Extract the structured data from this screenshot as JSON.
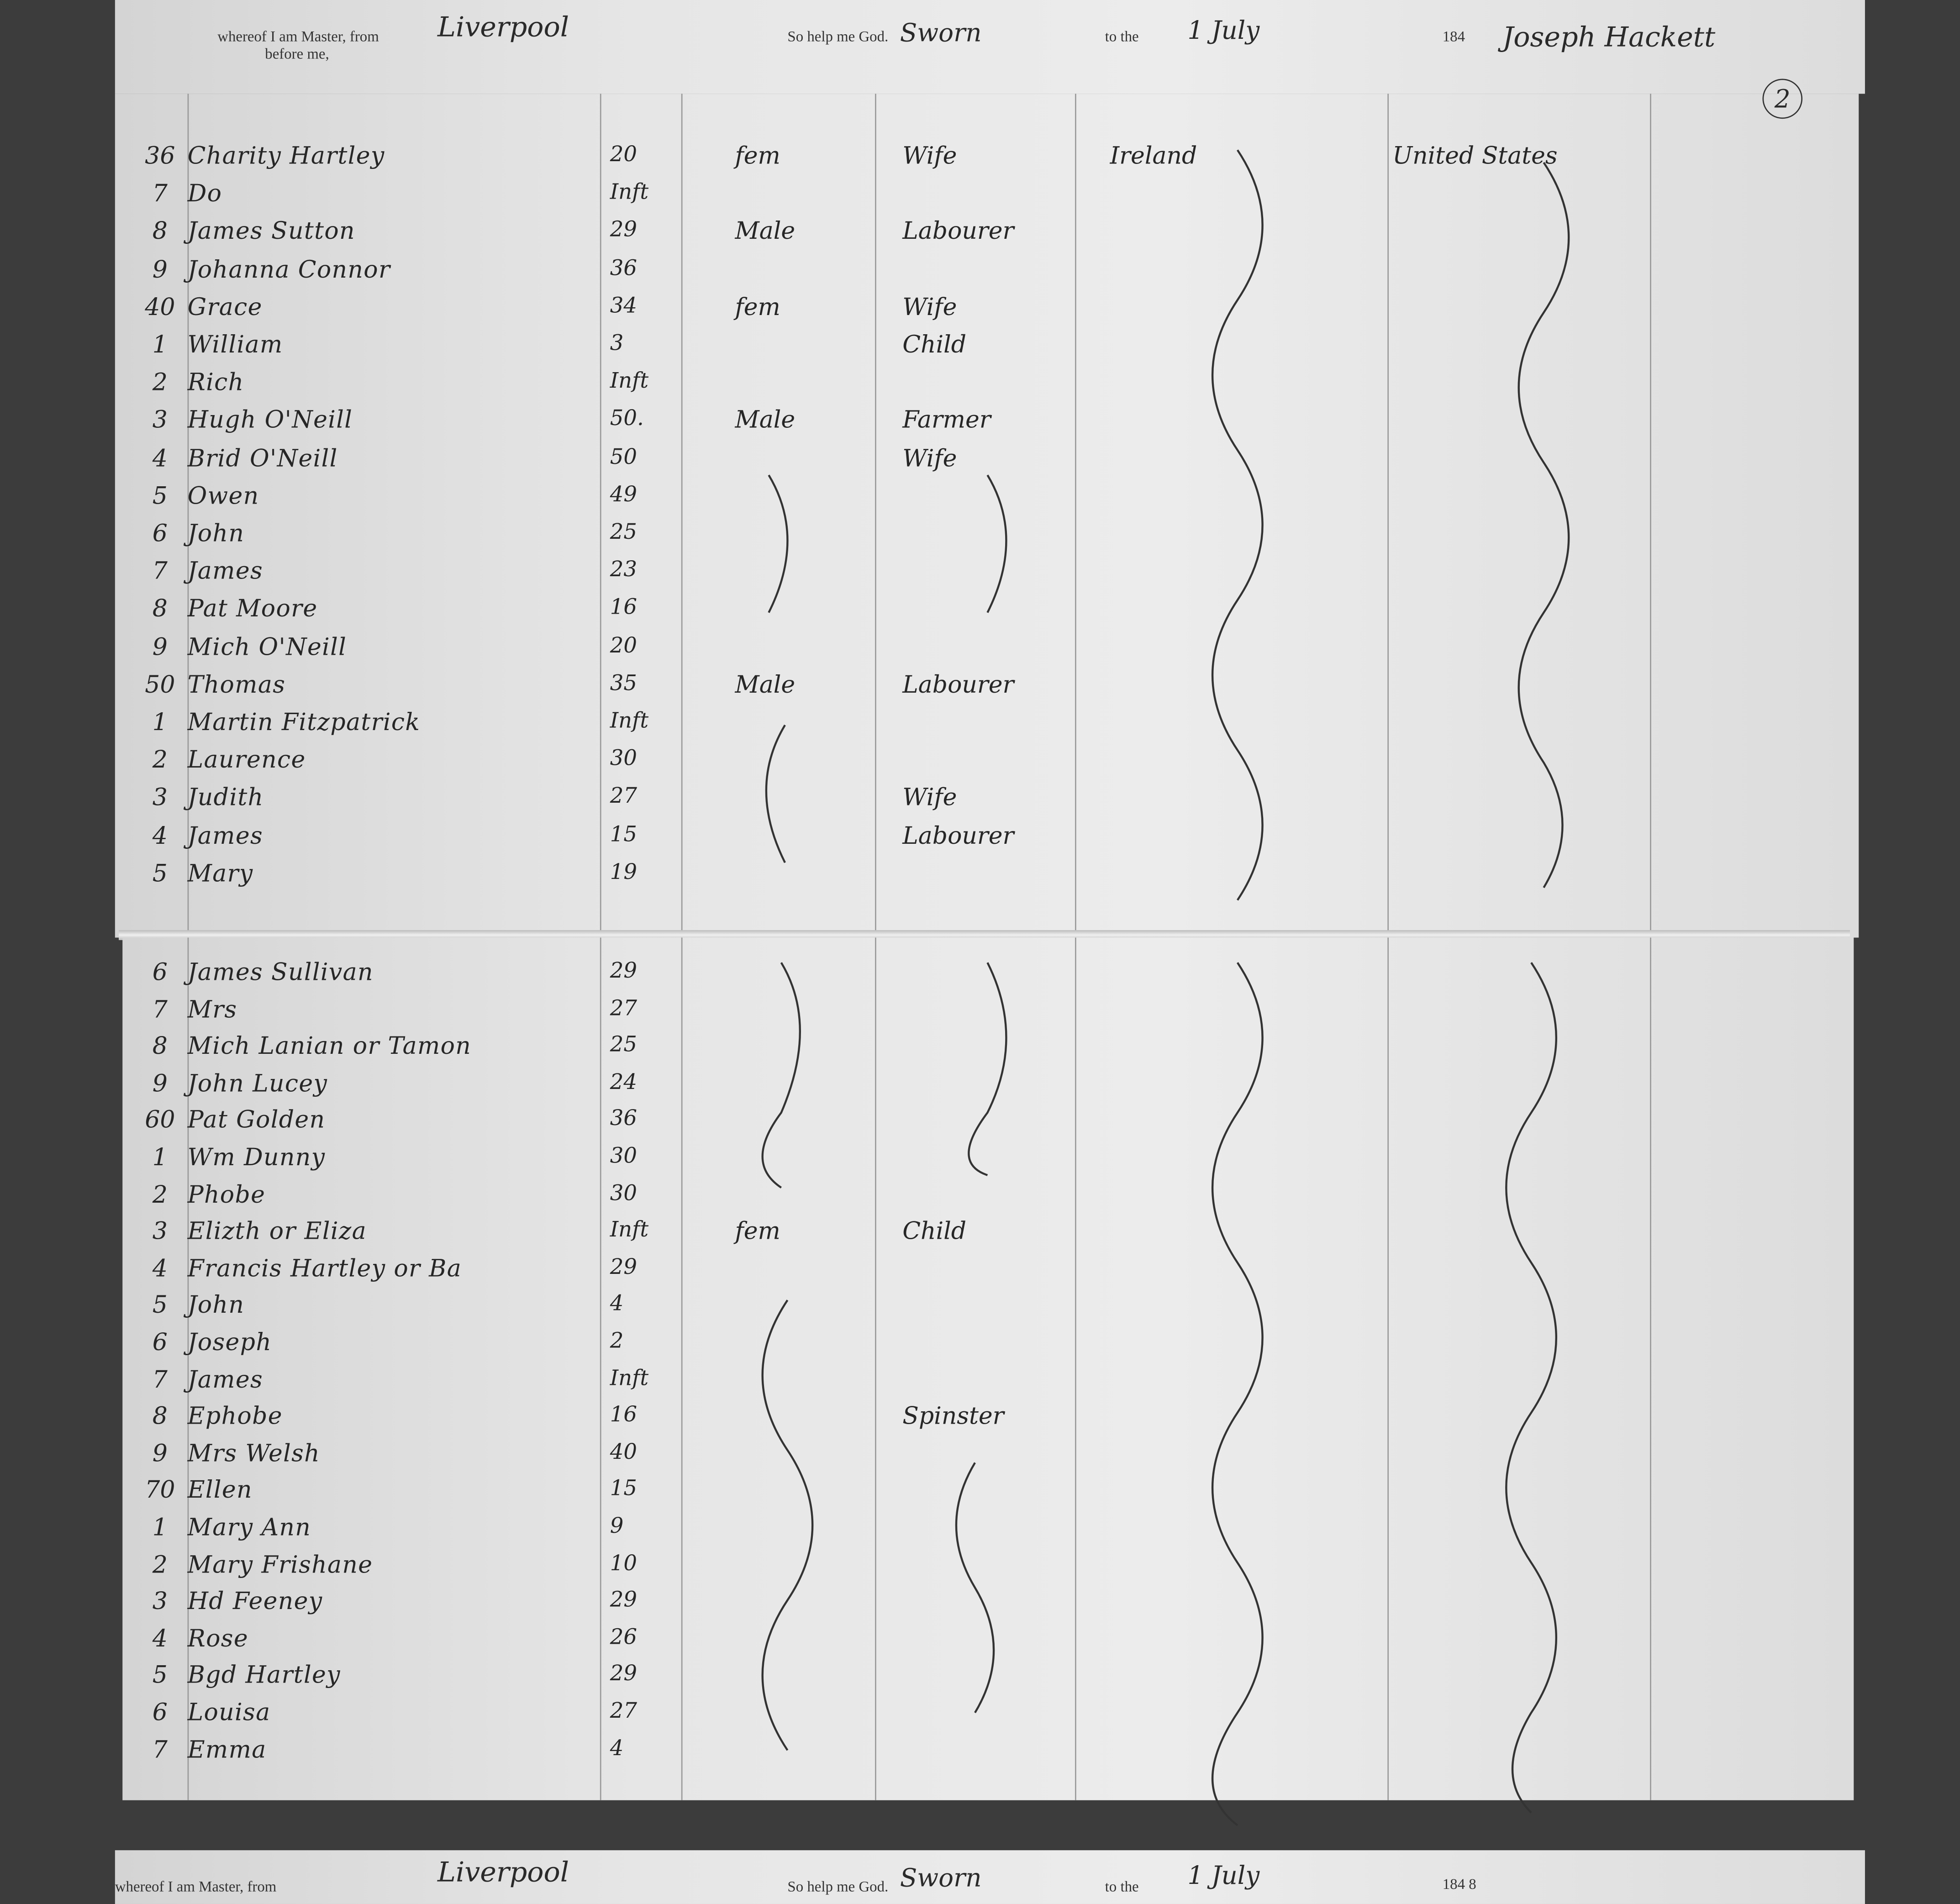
{
  "header_top": {
    "master_text": "whereof I am Master, from",
    "before_text": "before me,",
    "port": "Liverpool",
    "oath_text": "So help me God.",
    "sworn": "Sworn",
    "to_the": "to the",
    "date_hand": "1 July",
    "year": "184",
    "signature": "Joseph Hackett"
  },
  "header_bottom": {
    "master_text": "whereof I am Master, from",
    "port": "Liverpool",
    "oath_text": "So help me God.",
    "sworn": "Sworn",
    "to_the": "to the",
    "date_hand": "1 July",
    "year": "184 8"
  },
  "page_number": "2",
  "top_rows": [
    {
      "num": "36",
      "name": "Charity Hartley",
      "age": "20",
      "sex": "fem",
      "occ": "Wife",
      "country": "Ireland",
      "dest": "United States"
    },
    {
      "num": "7",
      "name": "Do",
      "age": "Inft",
      "sex": "",
      "occ": "",
      "country": "",
      "dest": ""
    },
    {
      "num": "8",
      "name": "James Sutton",
      "age": "29",
      "sex": "Male",
      "occ": "Labourer",
      "country": "",
      "dest": ""
    },
    {
      "num": "9",
      "name": "Johanna Connor",
      "age": "36",
      "sex": "",
      "occ": "",
      "country": "",
      "dest": ""
    },
    {
      "num": "40",
      "name": "Grace",
      "age": "34",
      "sex": "fem",
      "occ": "Wife",
      "country": "",
      "dest": ""
    },
    {
      "num": "1",
      "name": "William",
      "age": "3",
      "sex": "",
      "occ": "Child",
      "country": "",
      "dest": ""
    },
    {
      "num": "2",
      "name": "Rich",
      "age": "Inft",
      "sex": "",
      "occ": "",
      "country": "",
      "dest": ""
    },
    {
      "num": "3",
      "name": "Hugh O'Neill",
      "age": "50.",
      "sex": "Male",
      "occ": "Farmer",
      "country": "",
      "dest": ""
    },
    {
      "num": "4",
      "name": "Brid O'Neill",
      "age": "50",
      "sex": "",
      "occ": "Wife",
      "country": "",
      "dest": ""
    },
    {
      "num": "5",
      "name": "Owen",
      "age": "49",
      "sex": "",
      "occ": "",
      "country": "",
      "dest": ""
    },
    {
      "num": "6",
      "name": "John",
      "age": "25",
      "sex": "",
      "occ": "",
      "country": "",
      "dest": ""
    },
    {
      "num": "7",
      "name": "James",
      "age": "23",
      "sex": "",
      "occ": "",
      "country": "",
      "dest": ""
    },
    {
      "num": "8",
      "name": "Pat Moore",
      "age": "16",
      "sex": "",
      "occ": "",
      "country": "",
      "dest": ""
    },
    {
      "num": "9",
      "name": "Mich O'Neill",
      "age": "20",
      "sex": "",
      "occ": "",
      "country": "",
      "dest": ""
    },
    {
      "num": "50",
      "name": "Thomas",
      "age": "35",
      "sex": "Male",
      "occ": "Labourer",
      "country": "",
      "dest": ""
    },
    {
      "num": "1",
      "name": "Martin Fitzpatrick",
      "age": "Inft",
      "sex": "",
      "occ": "",
      "country": "",
      "dest": ""
    },
    {
      "num": "2",
      "name": "Laurence",
      "age": "30",
      "sex": "",
      "occ": "",
      "country": "",
      "dest": ""
    },
    {
      "num": "3",
      "name": "Judith",
      "age": "27",
      "sex": "",
      "occ": "Wife",
      "country": "",
      "dest": ""
    },
    {
      "num": "4",
      "name": "James",
      "age": "15",
      "sex": "",
      "occ": "Labourer",
      "country": "",
      "dest": ""
    },
    {
      "num": "5",
      "name": "Mary",
      "age": "19",
      "sex": "",
      "occ": "",
      "country": "",
      "dest": ""
    }
  ],
  "bottom_rows": [
    {
      "num": "6",
      "name": "James Sullivan",
      "age": "29",
      "sex": "",
      "occ": "",
      "country": "",
      "dest": ""
    },
    {
      "num": "7",
      "name": "Mrs",
      "age": "27",
      "sex": "",
      "occ": "",
      "country": "",
      "dest": ""
    },
    {
      "num": "8",
      "name": "Mich Lanian or Tamon",
      "age": "25",
      "sex": "",
      "occ": "",
      "country": "",
      "dest": ""
    },
    {
      "num": "9",
      "name": "John Lucey",
      "age": "24",
      "sex": "",
      "occ": "",
      "country": "",
      "dest": ""
    },
    {
      "num": "60",
      "name": "Pat Golden",
      "age": "36",
      "sex": "",
      "occ": "",
      "country": "",
      "dest": ""
    },
    {
      "num": "1",
      "name": "Wm Dunny",
      "age": "30",
      "sex": "",
      "occ": "",
      "country": "",
      "dest": ""
    },
    {
      "num": "2",
      "name": "Phobe",
      "age": "30",
      "sex": "",
      "occ": "",
      "country": "",
      "dest": ""
    },
    {
      "num": "3",
      "name": "Elizth or Eliza",
      "age": "Inft",
      "sex": "fem",
      "occ": "Child",
      "country": "",
      "dest": ""
    },
    {
      "num": "4",
      "name": "Francis Hartley or Ba",
      "age": "29",
      "sex": "",
      "occ": "",
      "country": "",
      "dest": ""
    },
    {
      "num": "5",
      "name": "John",
      "age": "4",
      "sex": "",
      "occ": "",
      "country": "",
      "dest": ""
    },
    {
      "num": "6",
      "name": "Joseph",
      "age": "2",
      "sex": "",
      "occ": "",
      "country": "",
      "dest": ""
    },
    {
      "num": "7",
      "name": "James",
      "age": "Inft",
      "sex": "",
      "occ": "",
      "country": "",
      "dest": ""
    },
    {
      "num": "8",
      "name": "Ephobe",
      "age": "16",
      "sex": "",
      "occ": "Spinster",
      "country": "",
      "dest": ""
    },
    {
      "num": "9",
      "name": "Mrs Welsh",
      "age": "40",
      "sex": "",
      "occ": "",
      "country": "",
      "dest": ""
    },
    {
      "num": "70",
      "name": "Ellen",
      "age": "15",
      "sex": "",
      "occ": "",
      "country": "",
      "dest": ""
    },
    {
      "num": "1",
      "name": "Mary Ann",
      "age": "9",
      "sex": "",
      "occ": "",
      "country": "",
      "dest": ""
    },
    {
      "num": "2",
      "name": "Mary Frishane",
      "age": "10",
      "sex": "",
      "occ": "",
      "country": "",
      "dest": ""
    },
    {
      "num": "3",
      "name": "Hd Feeney",
      "age": "29",
      "sex": "",
      "occ": "",
      "country": "",
      "dest": ""
    },
    {
      "num": "4",
      "name": "Rose",
      "age": "26",
      "sex": "",
      "occ": "",
      "country": "",
      "dest": ""
    },
    {
      "num": "5",
      "name": "Bgd Hartley",
      "age": "29",
      "sex": "",
      "occ": "",
      "country": "",
      "dest": ""
    },
    {
      "num": "6",
      "name": "Louisa",
      "age": "27",
      "sex": "",
      "occ": "",
      "country": "",
      "dest": ""
    },
    {
      "num": "7",
      "name": "Emma",
      "age": "4",
      "sex": "",
      "occ": "",
      "country": "",
      "dest": ""
    }
  ]
}
